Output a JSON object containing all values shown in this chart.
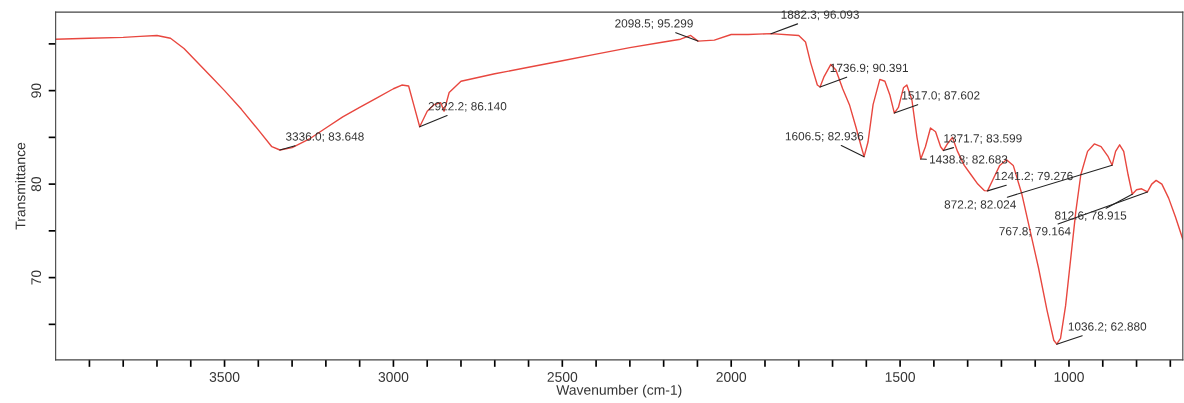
{
  "chart_data": {
    "type": "line",
    "xlabel": "Wavenumber (cm-1)",
    "ylabel": "Transmittance",
    "xlim": [
      4000,
      663
    ],
    "ylim": [
      61.2,
      98.4
    ],
    "xticks": [
      {
        "value": 3900,
        "label": null
      },
      {
        "value": 3800,
        "label": null
      },
      {
        "value": 3700,
        "label": null
      },
      {
        "value": 3600,
        "label": null
      },
      3500,
      {
        "value": 3400,
        "label": null
      },
      {
        "value": 3300,
        "label": null
      },
      {
        "value": 3200,
        "label": null
      },
      {
        "value": 3100,
        "label": null
      },
      3000,
      {
        "value": 2900,
        "label": null
      },
      {
        "value": 2800,
        "label": null
      },
      {
        "value": 2700,
        "label": null
      },
      {
        "value": 2600,
        "label": null
      },
      2500,
      {
        "value": 2400,
        "label": null
      },
      {
        "value": 2300,
        "label": null
      },
      {
        "value": 2200,
        "label": null
      },
      {
        "value": 2100,
        "label": null
      },
      2000,
      {
        "value": 1900,
        "label": null
      },
      {
        "value": 1800,
        "label": null
      },
      {
        "value": 1700,
        "label": null
      },
      {
        "value": 1600,
        "label": null
      },
      1500,
      {
        "value": 1400,
        "label": null
      },
      {
        "value": 1300,
        "label": null
      },
      {
        "value": 1200,
        "label": null
      },
      {
        "value": 1100,
        "label": null
      },
      1000,
      {
        "value": 900,
        "label": null
      },
      {
        "value": 800,
        "label": null
      },
      {
        "value": 700,
        "label": null
      }
    ],
    "yticks": [
      {
        "value": 65,
        "label": null
      },
      70,
      {
        "value": 75,
        "label": null
      },
      80,
      {
        "value": 85,
        "label": null
      },
      90,
      {
        "value": 95,
        "label": null
      }
    ],
    "grid": false,
    "series": [
      {
        "color": "#e8473f",
        "x": [
          4000,
          3900,
          3800,
          3750,
          3700,
          3660,
          3620,
          3580,
          3540,
          3500,
          3450,
          3400,
          3360,
          3336.0,
          3300,
          3250,
          3200,
          3150,
          3100,
          3050,
          3000,
          2975,
          2955,
          2940,
          2922.2,
          2900,
          2880,
          2860,
          2850,
          2835,
          2800,
          2700,
          2600,
          2500,
          2400,
          2300,
          2200,
          2150,
          2120,
          2098.5,
          2050,
          2000,
          1950,
          1882.3,
          1800,
          1780,
          1765,
          1745,
          1736.9,
          1725,
          1705,
          1690,
          1670,
          1650,
          1630,
          1615,
          1606.5,
          1595,
          1580,
          1560,
          1545,
          1530,
          1517.0,
          1505,
          1490,
          1480,
          1465,
          1450,
          1438.8,
          1425,
          1410,
          1395,
          1380,
          1371.7,
          1360,
          1345,
          1330,
          1310,
          1290,
          1270,
          1250,
          1241.2,
          1225,
          1205,
          1185,
          1165,
          1140,
          1115,
          1090,
          1065,
          1045,
          1036.2,
          1025,
          1010,
          995,
          980,
          965,
          945,
          925,
          905,
          885,
          872.2,
          862,
          850,
          838,
          825,
          812.6,
          800,
          785,
          767.8,
          755,
          742,
          725,
          705,
          685,
          663
        ],
        "values": [
          95.5,
          95.6,
          95.7,
          95.8,
          95.9,
          95.6,
          94.5,
          93.0,
          91.5,
          90.0,
          88.0,
          85.8,
          84.0,
          83.648,
          83.9,
          84.8,
          86.0,
          87.2,
          88.2,
          89.2,
          90.2,
          90.6,
          90.5,
          88.5,
          86.14,
          87.8,
          88.5,
          88.7,
          87.8,
          89.8,
          91.0,
          91.8,
          92.5,
          93.2,
          93.9,
          94.6,
          95.2,
          95.5,
          95.9,
          95.299,
          95.4,
          96.0,
          96.0,
          96.093,
          95.9,
          95.2,
          93.0,
          90.6,
          90.391,
          91.5,
          92.8,
          92.2,
          90.2,
          88.5,
          86.0,
          84.0,
          82.936,
          84.5,
          88.5,
          91.2,
          91.0,
          89.5,
          87.602,
          88.2,
          90.3,
          90.6,
          89.0,
          85.0,
          82.683,
          84.0,
          86.0,
          85.6,
          84.0,
          83.599,
          84.3,
          85.0,
          83.5,
          82.0,
          81.0,
          80.0,
          79.3,
          79.276,
          80.5,
          82.0,
          82.6,
          82.0,
          79.0,
          75.0,
          71.0,
          66.5,
          63.3,
          62.88,
          63.5,
          67.0,
          72.0,
          77.0,
          81.0,
          83.5,
          84.3,
          84.0,
          83.0,
          82.024,
          83.5,
          84.2,
          83.5,
          81.0,
          78.915,
          79.4,
          79.5,
          79.164,
          80.0,
          80.4,
          80.0,
          78.5,
          76.5,
          74.1
        ]
      }
    ],
    "annotations": [
      {
        "text": "3336.0; 83.648",
        "x": 3336.0,
        "y": 83.648
      },
      {
        "text": "2922.2; 86.140",
        "x": 2922.2,
        "y": 86.14
      },
      {
        "text": "2098.5; 95.299",
        "x": 2098.5,
        "y": 95.299
      },
      {
        "text": "1882.3; 96.093",
        "x": 1882.3,
        "y": 96.093
      },
      {
        "text": "1736.9; 90.391",
        "x": 1736.9,
        "y": 90.391
      },
      {
        "text": "1606.5; 82.936",
        "x": 1606.5,
        "y": 82.936
      },
      {
        "text": "1517.0; 87.602",
        "x": 1517.0,
        "y": 87.602
      },
      {
        "text": "1438.8; 82.683",
        "x": 1438.8,
        "y": 82.683
      },
      {
        "text": "1371.7; 83.599",
        "x": 1371.7,
        "y": 83.599
      },
      {
        "text": "1241.2; 79.276",
        "x": 1241.2,
        "y": 79.276
      },
      {
        "text": "872.2; 82.024",
        "x": 872.2,
        "y": 82.024
      },
      {
        "text": "812.6; 78.915",
        "x": 812.6,
        "y": 78.915
      },
      {
        "text": "767.8; 79.164",
        "x": 767.8,
        "y": 79.164
      },
      {
        "text": "1036.2; 62.880",
        "x": 1036.2,
        "y": 62.88
      }
    ]
  }
}
